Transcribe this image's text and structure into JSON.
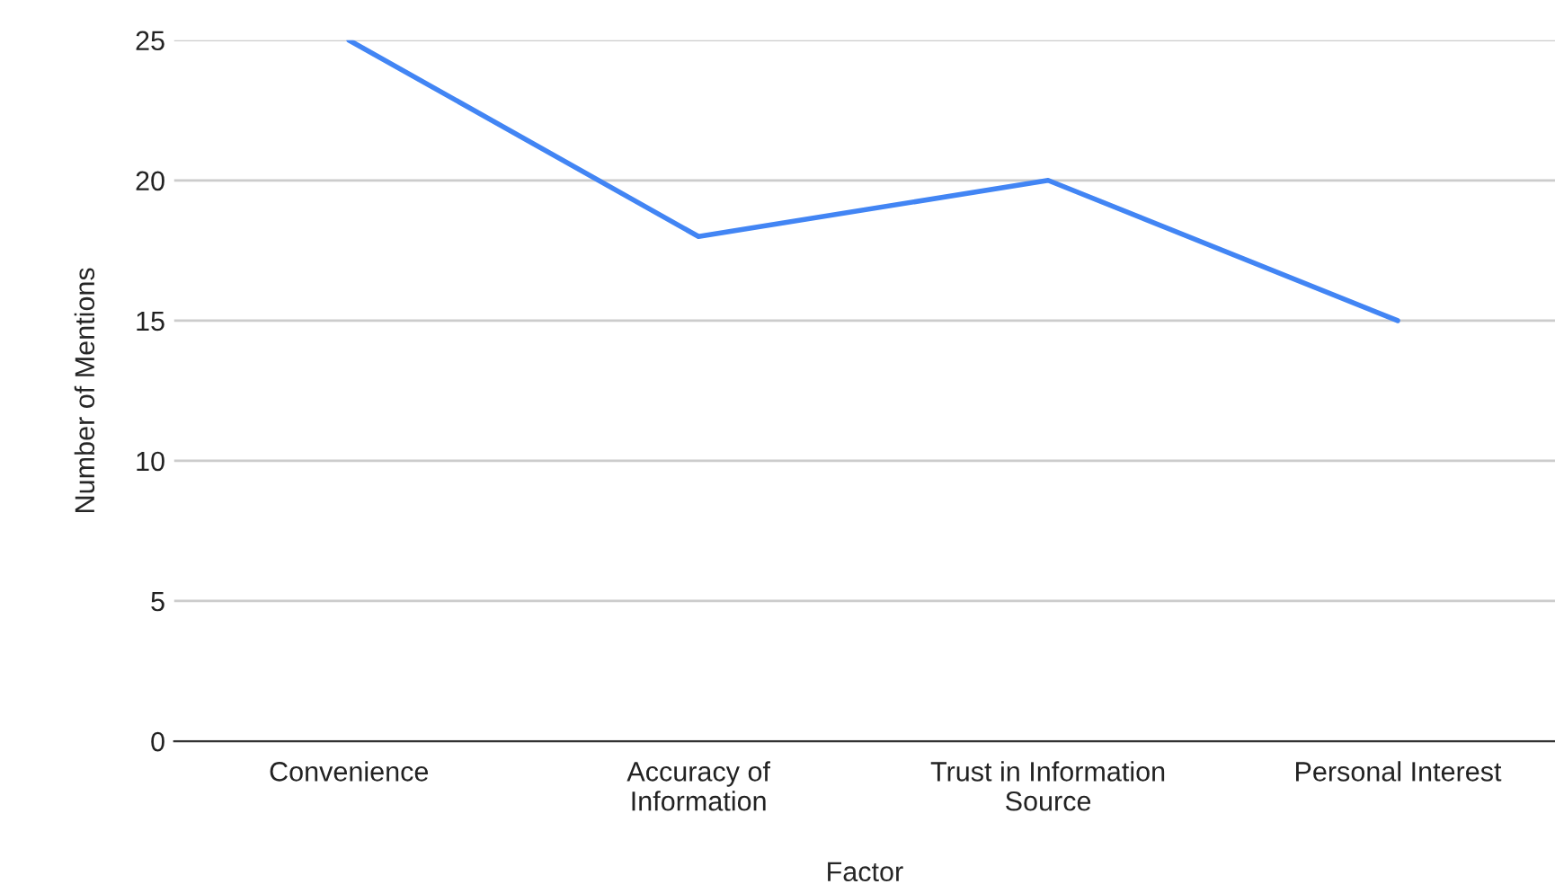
{
  "chart_data": {
    "type": "line",
    "xlabel": "Factor",
    "ylabel": "Number of Mentions",
    "categories": [
      "Convenience",
      "Accuracy of\nInformation",
      "Trust in Information\nSource",
      "Personal Interest"
    ],
    "series": [
      {
        "color": "#4285f4",
        "values": [
          25,
          18,
          20,
          15
        ]
      }
    ],
    "ylim": [
      0,
      25
    ],
    "yticks": [
      0,
      5,
      10,
      15,
      20,
      25
    ],
    "grid": "y",
    "marker": "none",
    "line_style": "solid"
  }
}
